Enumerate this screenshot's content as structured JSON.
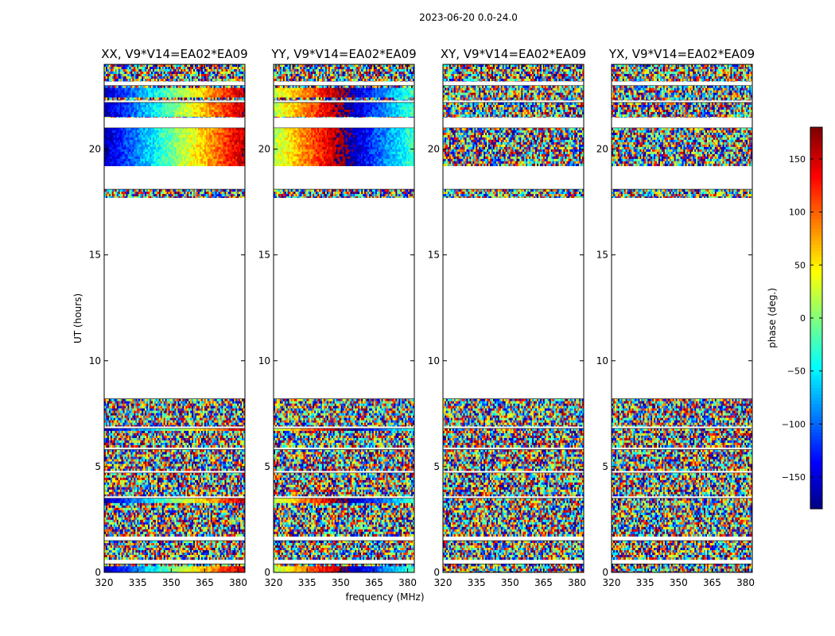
{
  "suptitle": "2023-06-20 0.0-24.0",
  "chart_data": [
    {
      "type": "heatmap",
      "title": "XX, V9*V14=EA02*EA09",
      "xlabel": "",
      "ylabel": "UT (hours)",
      "xlim": [
        320,
        383
      ],
      "ylim": [
        0,
        24
      ],
      "xticks": [
        "320",
        "335",
        "350",
        "365",
        "380"
      ],
      "yticks": [
        "0",
        "5",
        "10",
        "15",
        "20"
      ],
      "data_bands_ut": [
        [
          0.0,
          0.4
        ],
        [
          0.6,
          1.5
        ],
        [
          1.7,
          3.5
        ],
        [
          3.6,
          4.7
        ],
        [
          4.8,
          5.8
        ],
        [
          5.9,
          6.8
        ],
        [
          6.9,
          8.2
        ],
        [
          17.7,
          18.1
        ],
        [
          19.2,
          21.0
        ],
        [
          21.5,
          22.2
        ],
        [
          22.3,
          23.0
        ],
        [
          23.2,
          24.0
        ]
      ],
      "coherent_bands_ut": [
        [
          0.05,
          0.35
        ],
        [
          3.3,
          3.5
        ],
        [
          6.7,
          6.85
        ],
        [
          19.2,
          21.0
        ],
        [
          21.6,
          22.3
        ],
        [
          22.5,
          22.9
        ]
      ]
    },
    {
      "type": "heatmap",
      "title": "YY, V9*V14=EA02*EA09",
      "xlabel": "frequency (MHz)",
      "ylabel": "",
      "xlim": [
        320,
        383
      ],
      "ylim": [
        0,
        24
      ],
      "xticks": [
        "320",
        "335",
        "350",
        "365",
        "380"
      ],
      "yticks": [
        "0",
        "5",
        "10",
        "15",
        "20"
      ],
      "data_bands_ut": [
        [
          0.0,
          0.4
        ],
        [
          0.6,
          1.5
        ],
        [
          1.7,
          3.5
        ],
        [
          3.6,
          4.7
        ],
        [
          4.8,
          5.8
        ],
        [
          5.9,
          6.8
        ],
        [
          6.9,
          8.2
        ],
        [
          17.7,
          18.1
        ],
        [
          19.2,
          21.0
        ],
        [
          21.5,
          22.2
        ],
        [
          22.3,
          23.0
        ],
        [
          23.2,
          24.0
        ]
      ],
      "coherent_bands_ut": [
        [
          0.05,
          0.35
        ],
        [
          3.3,
          3.5
        ],
        [
          6.7,
          6.85
        ],
        [
          19.2,
          21.0
        ],
        [
          21.6,
          22.3
        ],
        [
          22.5,
          22.9
        ]
      ]
    },
    {
      "type": "heatmap",
      "title": "XY, V9*V14=EA02*EA09",
      "xlabel": "",
      "ylabel": "",
      "xlim": [
        320,
        383
      ],
      "ylim": [
        0,
        24
      ],
      "xticks": [
        "320",
        "335",
        "350",
        "365",
        "380"
      ],
      "yticks": [
        "0",
        "5",
        "10",
        "15",
        "20"
      ],
      "data_bands_ut": [
        [
          0.0,
          0.4
        ],
        [
          0.6,
          1.5
        ],
        [
          1.7,
          3.5
        ],
        [
          3.6,
          4.7
        ],
        [
          4.8,
          5.8
        ],
        [
          5.9,
          6.8
        ],
        [
          6.9,
          8.2
        ],
        [
          17.7,
          18.1
        ],
        [
          19.2,
          21.0
        ],
        [
          21.5,
          22.2
        ],
        [
          22.3,
          23.0
        ],
        [
          23.2,
          24.0
        ]
      ],
      "coherent_bands_ut": []
    },
    {
      "type": "heatmap",
      "title": "YX, V9*V14=EA02*EA09",
      "xlabel": "",
      "ylabel": "",
      "xlim": [
        320,
        383
      ],
      "ylim": [
        0,
        24
      ],
      "xticks": [
        "320",
        "335",
        "350",
        "365",
        "380"
      ],
      "yticks": [
        "0",
        "5",
        "10",
        "15",
        "20"
      ],
      "data_bands_ut": [
        [
          0.0,
          0.4
        ],
        [
          0.6,
          1.5
        ],
        [
          1.7,
          3.5
        ],
        [
          3.6,
          4.7
        ],
        [
          4.8,
          5.8
        ],
        [
          5.9,
          6.8
        ],
        [
          6.9,
          8.2
        ],
        [
          17.7,
          18.1
        ],
        [
          19.2,
          21.0
        ],
        [
          21.5,
          22.2
        ],
        [
          22.3,
          23.0
        ],
        [
          23.2,
          24.0
        ]
      ],
      "coherent_bands_ut": []
    }
  ],
  "colorbar": {
    "label": "phase (deg.)",
    "range": [
      -180,
      180
    ],
    "ticks": [
      "150",
      "100",
      "50",
      "0",
      "−50",
      "−100",
      "−150"
    ],
    "tick_values": [
      150,
      100,
      50,
      0,
      -50,
      -100,
      -150
    ],
    "colormap": "jet"
  }
}
